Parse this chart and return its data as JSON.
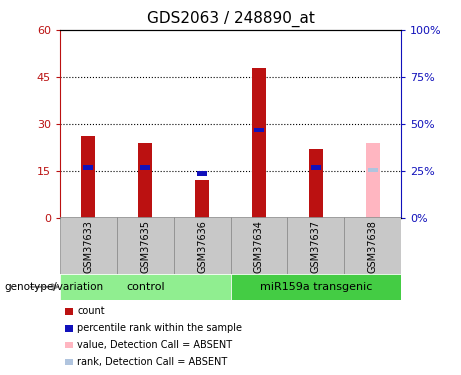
{
  "title": "GDS2063 / 248890_at",
  "samples": [
    "GSM37633",
    "GSM37635",
    "GSM37636",
    "GSM37634",
    "GSM37637",
    "GSM37638"
  ],
  "count_values": [
    26,
    24,
    12,
    48,
    22,
    0
  ],
  "percentile_rank": [
    16,
    16,
    14,
    28,
    16,
    16
  ],
  "absent_value": [
    0,
    0,
    0,
    0,
    0,
    24
  ],
  "absent_rank": [
    0,
    0,
    0,
    0,
    0,
    16
  ],
  "is_absent": [
    false,
    false,
    false,
    false,
    false,
    true
  ],
  "groups": [
    {
      "label": "control",
      "indices": [
        0,
        1,
        2
      ]
    },
    {
      "label": "miR159a transgenic",
      "indices": [
        3,
        4,
        5
      ]
    }
  ],
  "ylim_left": [
    0,
    60
  ],
  "ylim_right": [
    0,
    100
  ],
  "yticks_left": [
    0,
    15,
    30,
    45,
    60
  ],
  "yticks_right": [
    0,
    25,
    50,
    75,
    100
  ],
  "ytick_labels_left": [
    "0",
    "15",
    "30",
    "45",
    "60"
  ],
  "ytick_labels_right": [
    "0%",
    "25%",
    "50%",
    "75%",
    "100%"
  ],
  "bar_width": 0.25,
  "blue_bar_width": 0.18,
  "blue_bar_height": 1.5,
  "count_color": "#BB1111",
  "percentile_color": "#1111BB",
  "absent_count_color": "#FFB6C1",
  "absent_rank_color": "#B0C4DE",
  "gray_bg": "#C8C8C8",
  "control_color": "#90EE90",
  "transgenic_color": "#44CC44",
  "legend_items": [
    {
      "label": "count",
      "color": "#BB1111"
    },
    {
      "label": "percentile rank within the sample",
      "color": "#1111BB"
    },
    {
      "label": "value, Detection Call = ABSENT",
      "color": "#FFB6C1"
    },
    {
      "label": "rank, Detection Call = ABSENT",
      "color": "#B0C4DE"
    }
  ]
}
